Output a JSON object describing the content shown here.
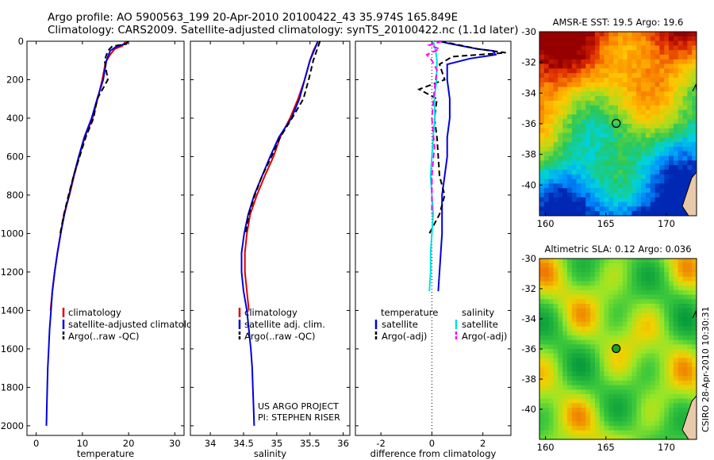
{
  "header": {
    "line1": "Argo profile: AO 5900563_199 20-Apr-2010 20100422_43 35.974S 165.849E",
    "line2": "Climatology: CARS2009. Satellite-adjusted climatology: synTS_20100422.nc (1.1d later)"
  },
  "credits": {
    "project": "US ARGO PROJECT",
    "pi": "PI: STEPHEN RISER",
    "side": "CSIRO 28-Apr-2010 10:30:31"
  },
  "colors": {
    "climatology": "#e00000",
    "satellite_temp": "#0000e0",
    "satellite_sal": "#00e0e0",
    "argo": "#000000",
    "argo_sal": "#ff00ff"
  },
  "chart_data": [
    {
      "type": "line",
      "id": "temperature",
      "xlabel": "temperature",
      "xlim": [
        -2,
        32
      ],
      "ylim": [
        2050,
        0
      ],
      "xticks": [
        0,
        10,
        20,
        30
      ],
      "yticks": [
        0,
        200,
        400,
        600,
        800,
        1000,
        1200,
        1400,
        1600,
        1800,
        2000
      ],
      "legend": [
        "climatology",
        "satellite-adjusted climatology",
        "Argo(..raw -QC)"
      ],
      "series": [
        {
          "name": "climatology",
          "color": "#e00000",
          "dash": "",
          "points": [
            [
              19.4,
              0
            ],
            [
              18.6,
              25
            ],
            [
              17,
              40
            ],
            [
              16,
              70
            ],
            [
              15,
              110
            ],
            [
              14.3,
              200
            ],
            [
              13.3,
              300
            ],
            [
              12.2,
              400
            ],
            [
              10.5,
              500
            ],
            [
              9.3,
              600
            ],
            [
              8.2,
              700
            ],
            [
              7.2,
              800
            ],
            [
              6,
              900
            ],
            [
              5.3,
              1000
            ],
            [
              4.6,
              1100
            ],
            [
              4,
              1200
            ],
            [
              3.5,
              1300
            ],
            [
              3.1,
              1400
            ]
          ]
        },
        {
          "name": "satellite-adjusted climatology",
          "color": "#0000e0",
          "dash": "",
          "points": [
            [
              19.9,
              0
            ],
            [
              19.6,
              10
            ],
            [
              17.2,
              30
            ],
            [
              16,
              50
            ],
            [
              15.2,
              100
            ],
            [
              14.5,
              200
            ],
            [
              13.2,
              300
            ],
            [
              12,
              400
            ],
            [
              10.4,
              500
            ],
            [
              9.2,
              600
            ],
            [
              8.1,
              700
            ],
            [
              7.1,
              800
            ],
            [
              6.1,
              900
            ],
            [
              5.3,
              1000
            ],
            [
              4.6,
              1100
            ],
            [
              4,
              1200
            ],
            [
              3.5,
              1300
            ],
            [
              3.2,
              1400
            ],
            [
              2.9,
              1500
            ],
            [
              2.7,
              1600
            ],
            [
              2.5,
              1700
            ],
            [
              2.4,
              1800
            ],
            [
              2.3,
              1900
            ],
            [
              2.2,
              2000
            ]
          ]
        },
        {
          "name": "Argo(..raw -QC)",
          "color": "#000000",
          "dash": "7,4",
          "points": [
            [
              19.8,
              0
            ],
            [
              19.5,
              15
            ],
            [
              16.5,
              25
            ],
            [
              15.5,
              50
            ],
            [
              14.8,
              100
            ],
            [
              15.5,
              200
            ],
            [
              13.2,
              300
            ],
            [
              12.4,
              400
            ],
            [
              10.7,
              500
            ],
            [
              9.4,
              600
            ],
            [
              8.1,
              700
            ],
            [
              7,
              800
            ],
            [
              6,
              900
            ],
            [
              5.2,
              1000
            ]
          ]
        }
      ]
    },
    {
      "type": "line",
      "id": "salinity",
      "xlabel": "salinity",
      "xlim": [
        33.7,
        36.1
      ],
      "ylim": [
        2050,
        0
      ],
      "xticks": [
        34,
        34.5,
        35,
        35.5,
        36
      ],
      "legend": [
        "climatology",
        "satellite adj. clim.",
        "Argo(..raw -QC)"
      ],
      "series": [
        {
          "name": "climatology",
          "color": "#e00000",
          "dash": "",
          "points": [
            [
              35.62,
              0
            ],
            [
              35.55,
              50
            ],
            [
              35.5,
              100
            ],
            [
              35.42,
              200
            ],
            [
              35.32,
              300
            ],
            [
              35.2,
              400
            ],
            [
              35.05,
              500
            ],
            [
              34.95,
              600
            ],
            [
              34.82,
              700
            ],
            [
              34.7,
              800
            ],
            [
              34.6,
              900
            ],
            [
              34.55,
              1000
            ],
            [
              34.52,
              1100
            ],
            [
              34.52,
              1200
            ],
            [
              34.55,
              1300
            ],
            [
              34.58,
              1400
            ]
          ]
        },
        {
          "name": "satellite adj. clim.",
          "color": "#0000e0",
          "dash": "",
          "points": [
            [
              35.62,
              0
            ],
            [
              35.56,
              50
            ],
            [
              35.5,
              100
            ],
            [
              35.42,
              200
            ],
            [
              35.34,
              300
            ],
            [
              35.22,
              400
            ],
            [
              35.03,
              500
            ],
            [
              34.9,
              600
            ],
            [
              34.78,
              700
            ],
            [
              34.66,
              800
            ],
            [
              34.57,
              900
            ],
            [
              34.51,
              1000
            ],
            [
              34.47,
              1100
            ],
            [
              34.47,
              1200
            ],
            [
              34.5,
              1300
            ],
            [
              34.55,
              1400
            ],
            [
              34.58,
              1500
            ],
            [
              34.61,
              1600
            ],
            [
              34.63,
              1700
            ],
            [
              34.64,
              1800
            ],
            [
              34.65,
              1900
            ],
            [
              34.66,
              2000
            ]
          ]
        },
        {
          "name": "Argo(..raw -QC)",
          "color": "#000000",
          "dash": "7,4",
          "points": [
            [
              35.65,
              0
            ],
            [
              35.62,
              30
            ],
            [
              35.55,
              100
            ],
            [
              35.48,
              200
            ],
            [
              35.4,
              300
            ],
            [
              35.23,
              400
            ],
            [
              35.05,
              500
            ],
            [
              34.92,
              600
            ],
            [
              34.78,
              700
            ],
            [
              34.67,
              800
            ],
            [
              34.58,
              900
            ],
            [
              34.53,
              1000
            ]
          ]
        }
      ]
    },
    {
      "type": "line",
      "id": "difference",
      "xlabel": "difference from climatology",
      "xlim": [
        -3,
        3.1
      ],
      "ylim": [
        2050,
        0
      ],
      "xticks": [
        -2,
        0,
        2
      ],
      "legend_left": {
        "title": "temperature",
        "items": [
          "satellite",
          "Argo(-adj)"
        ]
      },
      "legend_right": {
        "title": "salinity",
        "items": [
          "satellite",
          "Argo(-adj)"
        ]
      },
      "series": [
        {
          "name": "temperature satellite",
          "color": "#0000e0",
          "dash": "",
          "points": [
            [
              0.3,
              0
            ],
            [
              0.6,
              10
            ],
            [
              1.8,
              40
            ],
            [
              2.4,
              50
            ],
            [
              2.5,
              70
            ],
            [
              1.5,
              90
            ],
            [
              0.6,
              120
            ],
            [
              0.6,
              200
            ],
            [
              0.7,
              300
            ],
            [
              0.7,
              400
            ],
            [
              0.6,
              500
            ],
            [
              0.6,
              600
            ],
            [
              0.5,
              700
            ],
            [
              0.4,
              800
            ],
            [
              0.4,
              900
            ],
            [
              0.4,
              1000
            ],
            [
              0.35,
              1100
            ],
            [
              0.3,
              1200
            ],
            [
              0.25,
              1300
            ]
          ]
        },
        {
          "name": "temperature Argo(-adj)",
          "color": "#000000",
          "dash": "7,4",
          "points": [
            [
              0.35,
              0
            ],
            [
              1.8,
              40
            ],
            [
              2.9,
              60
            ],
            [
              0.8,
              80
            ],
            [
              0.3,
              120
            ],
            [
              0.5,
              200
            ],
            [
              -0.5,
              250
            ],
            [
              0.2,
              300
            ],
            [
              0.1,
              400
            ],
            [
              0.2,
              500
            ],
            [
              0.3,
              700
            ],
            [
              0.5,
              800
            ],
            [
              0.3,
              900
            ],
            [
              -0.1,
              1000
            ]
          ]
        },
        {
          "name": "salinity satellite",
          "color": "#00e0e0",
          "dash": "",
          "points": [
            [
              0.05,
              0
            ],
            [
              0.15,
              50
            ],
            [
              0.2,
              100
            ],
            [
              0.18,
              200
            ],
            [
              0.1,
              300
            ],
            [
              0.12,
              400
            ],
            [
              0.05,
              500
            ],
            [
              0.0,
              600
            ],
            [
              -0.05,
              700
            ],
            [
              0.0,
              800
            ],
            [
              0.05,
              900
            ],
            [
              0.0,
              1000
            ],
            [
              -0.05,
              1100
            ],
            [
              -0.05,
              1200
            ],
            [
              -0.1,
              1300
            ]
          ]
        },
        {
          "name": "salinity Argo(-adj)",
          "color": "#ff00ff",
          "dash": "7,4",
          "points": [
            [
              0.4,
              0
            ],
            [
              -0.1,
              20
            ],
            [
              0.3,
              40
            ],
            [
              -0.2,
              70
            ],
            [
              0.0,
              100
            ],
            [
              0.2,
              150
            ],
            [
              0.1,
              250
            ],
            [
              0.0,
              400
            ],
            [
              0.1,
              550
            ],
            [
              0.0,
              700
            ],
            [
              0.0,
              900
            ]
          ]
        }
      ]
    }
  ],
  "maps": [
    {
      "id": "sst",
      "title": "AMSR-E SST: 19.5 Argo: 19.6",
      "xticks": [
        160,
        165,
        170
      ],
      "yticks": [
        -30,
        -32,
        -34,
        -36,
        -38,
        -40
      ],
      "xlim": [
        159.5,
        172.5
      ],
      "ylim": [
        -42,
        -30
      ],
      "marker": [
        165.849,
        -35.974
      ],
      "marker_fill": "none"
    },
    {
      "id": "sla",
      "title": "Altimetric SLA: 0.12 Argo: 0.036",
      "xticks": [
        160,
        165,
        170
      ],
      "yticks": [
        -30,
        -32,
        -34,
        -36,
        -38,
        -40
      ],
      "xlim": [
        159.5,
        172.5
      ],
      "ylim": [
        -42,
        -30
      ],
      "marker": [
        165.849,
        -35.974
      ],
      "marker_fill": "#20a020"
    }
  ]
}
